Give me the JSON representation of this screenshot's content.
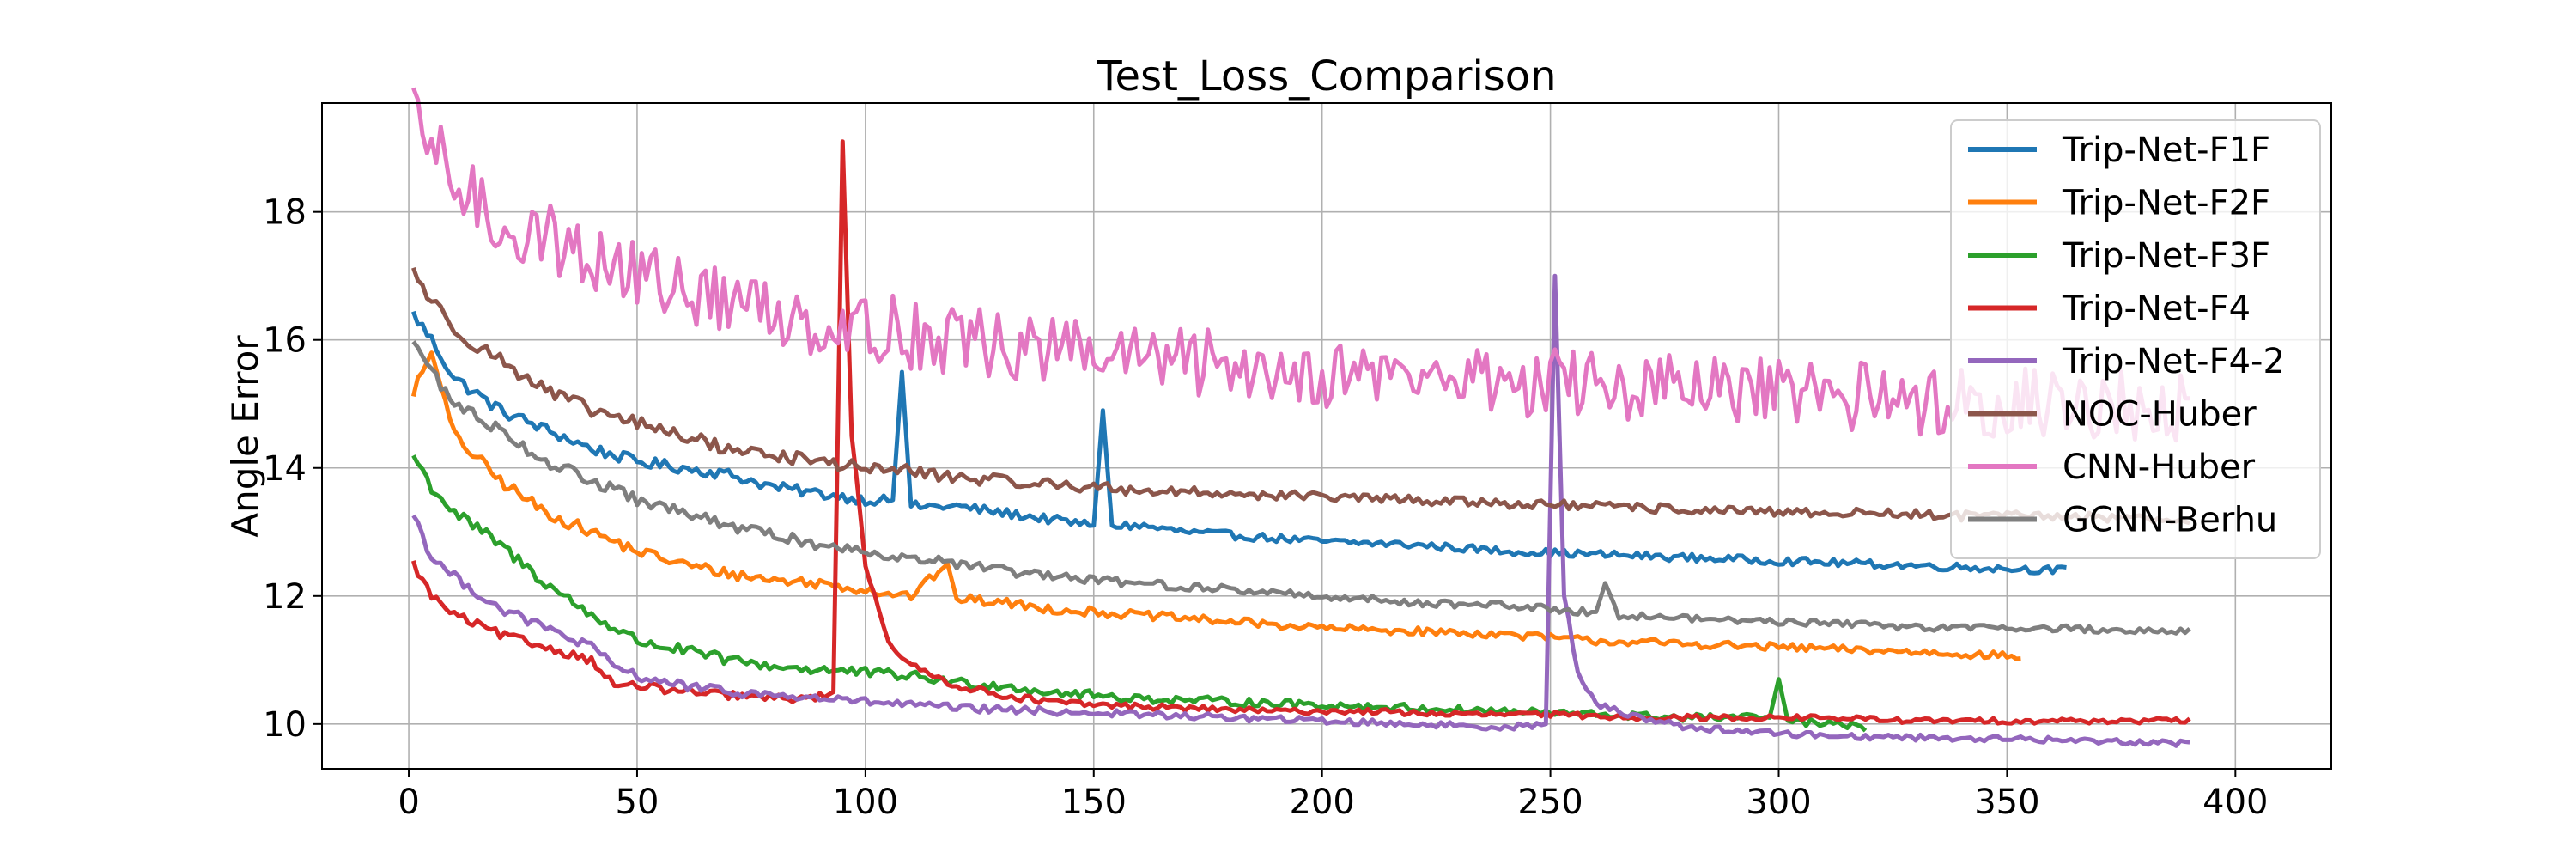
{
  "chart_data": {
    "type": "line",
    "title": "Test_Loss_Comparison",
    "xlabel": "",
    "ylabel": "Angle Error",
    "xlim": [
      -19,
      421
    ],
    "ylim": [
      9.3,
      19.7
    ],
    "xticks": [
      0,
      50,
      100,
      150,
      200,
      250,
      300,
      350,
      400
    ],
    "yticks": [
      10,
      12,
      14,
      16,
      18
    ],
    "grid": true,
    "legend_position": "top-right",
    "series": [
      {
        "name": "Trip-Net-F1F",
        "color": "#1f77b4",
        "end_x": 363,
        "points": [
          [
            1,
            16.4
          ],
          [
            5,
            16.0
          ],
          [
            10,
            15.4
          ],
          [
            20,
            14.9
          ],
          [
            30,
            14.6
          ],
          [
            40,
            14.3
          ],
          [
            50,
            14.1
          ],
          [
            60,
            14.0
          ],
          [
            70,
            13.9
          ],
          [
            80,
            13.7
          ],
          [
            90,
            13.6
          ],
          [
            100,
            13.5
          ],
          [
            106,
            13.5
          ],
          [
            108,
            15.5
          ],
          [
            110,
            13.4
          ],
          [
            120,
            13.4
          ],
          [
            130,
            13.3
          ],
          [
            140,
            13.2
          ],
          [
            150,
            13.1
          ],
          [
            152,
            14.9
          ],
          [
            154,
            13.1
          ],
          [
            160,
            13.1
          ],
          [
            170,
            13.0
          ],
          [
            180,
            12.95
          ],
          [
            190,
            12.9
          ],
          [
            200,
            12.85
          ],
          [
            220,
            12.8
          ],
          [
            240,
            12.7
          ],
          [
            260,
            12.65
          ],
          [
            280,
            12.6
          ],
          [
            300,
            12.55
          ],
          [
            320,
            12.5
          ],
          [
            340,
            12.45
          ],
          [
            363,
            12.4
          ]
        ]
      },
      {
        "name": "Trip-Net-F2F",
        "color": "#ff7f0e",
        "end_x": 353,
        "points": [
          [
            1,
            15.2
          ],
          [
            5,
            15.8
          ],
          [
            10,
            14.5
          ],
          [
            20,
            13.8
          ],
          [
            30,
            13.3
          ],
          [
            40,
            13.0
          ],
          [
            50,
            12.7
          ],
          [
            60,
            12.5
          ],
          [
            70,
            12.35
          ],
          [
            80,
            12.25
          ],
          [
            90,
            12.2
          ],
          [
            100,
            12.1
          ],
          [
            110,
            12.0
          ],
          [
            118,
            12.5
          ],
          [
            120,
            11.95
          ],
          [
            130,
            11.9
          ],
          [
            140,
            11.8
          ],
          [
            150,
            11.75
          ],
          [
            160,
            11.7
          ],
          [
            180,
            11.6
          ],
          [
            200,
            11.5
          ],
          [
            220,
            11.45
          ],
          [
            240,
            11.4
          ],
          [
            260,
            11.3
          ],
          [
            280,
            11.25
          ],
          [
            300,
            11.2
          ],
          [
            320,
            11.15
          ],
          [
            340,
            11.1
          ],
          [
            353,
            11.05
          ]
        ]
      },
      {
        "name": "Trip-Net-F3F",
        "color": "#2ca02c",
        "end_x": 319,
        "points": [
          [
            1,
            14.2
          ],
          [
            5,
            13.7
          ],
          [
            10,
            13.3
          ],
          [
            20,
            12.8
          ],
          [
            30,
            12.2
          ],
          [
            40,
            11.7
          ],
          [
            50,
            11.3
          ],
          [
            60,
            11.15
          ],
          [
            70,
            11.0
          ],
          [
            80,
            10.9
          ],
          [
            90,
            10.85
          ],
          [
            100,
            10.8
          ],
          [
            110,
            10.75
          ],
          [
            120,
            10.65
          ],
          [
            130,
            10.6
          ],
          [
            140,
            10.5
          ],
          [
            150,
            10.45
          ],
          [
            160,
            10.4
          ],
          [
            180,
            10.35
          ],
          [
            200,
            10.3
          ],
          [
            220,
            10.25
          ],
          [
            240,
            10.2
          ],
          [
            260,
            10.15
          ],
          [
            280,
            10.1
          ],
          [
            298,
            10.1
          ],
          [
            300,
            10.7
          ],
          [
            302,
            10.05
          ],
          [
            310,
            10.0
          ],
          [
            319,
            9.95
          ]
        ]
      },
      {
        "name": "Trip-Net-F4",
        "color": "#d62728",
        "end_x": 390,
        "points": [
          [
            1,
            12.5
          ],
          [
            5,
            12.0
          ],
          [
            10,
            11.7
          ],
          [
            20,
            11.4
          ],
          [
            30,
            11.2
          ],
          [
            40,
            11.0
          ],
          [
            45,
            10.6
          ],
          [
            50,
            10.6
          ],
          [
            60,
            10.5
          ],
          [
            70,
            10.45
          ],
          [
            80,
            10.4
          ],
          [
            88,
            10.4
          ],
          [
            93,
            10.5
          ],
          [
            95,
            19.1
          ],
          [
            97,
            14.5
          ],
          [
            100,
            12.5
          ],
          [
            105,
            11.3
          ],
          [
            110,
            10.9
          ],
          [
            120,
            10.6
          ],
          [
            130,
            10.45
          ],
          [
            140,
            10.35
          ],
          [
            150,
            10.3
          ],
          [
            170,
            10.25
          ],
          [
            190,
            10.2
          ],
          [
            210,
            10.2
          ],
          [
            230,
            10.15
          ],
          [
            250,
            10.15
          ],
          [
            270,
            10.1
          ],
          [
            290,
            10.1
          ],
          [
            310,
            10.1
          ],
          [
            330,
            10.05
          ],
          [
            350,
            10.05
          ],
          [
            370,
            10.05
          ],
          [
            390,
            10.05
          ]
        ]
      },
      {
        "name": "Trip-Net-F4-2",
        "color": "#9467bd",
        "end_x": 390,
        "points": [
          [
            1,
            13.3
          ],
          [
            5,
            12.6
          ],
          [
            10,
            12.3
          ],
          [
            20,
            11.8
          ],
          [
            30,
            11.5
          ],
          [
            40,
            11.2
          ],
          [
            45,
            10.9
          ],
          [
            50,
            10.75
          ],
          [
            60,
            10.6
          ],
          [
            70,
            10.5
          ],
          [
            80,
            10.45
          ],
          [
            90,
            10.4
          ],
          [
            100,
            10.35
          ],
          [
            120,
            10.25
          ],
          [
            140,
            10.2
          ],
          [
            160,
            10.15
          ],
          [
            180,
            10.1
          ],
          [
            200,
            10.05
          ],
          [
            220,
            10.0
          ],
          [
            240,
            9.95
          ],
          [
            249,
            10.0
          ],
          [
            251,
            17.0
          ],
          [
            253,
            12.0
          ],
          [
            256,
            10.8
          ],
          [
            260,
            10.3
          ],
          [
            270,
            10.1
          ],
          [
            280,
            9.95
          ],
          [
            300,
            9.85
          ],
          [
            320,
            9.8
          ],
          [
            340,
            9.78
          ],
          [
            360,
            9.75
          ],
          [
            380,
            9.72
          ],
          [
            390,
            9.7
          ]
        ]
      },
      {
        "name": "NOC-Huber",
        "color": "#8c564b",
        "end_x": 390,
        "points": [
          [
            1,
            17.1
          ],
          [
            5,
            16.6
          ],
          [
            10,
            16.2
          ],
          [
            15,
            15.9
          ],
          [
            20,
            15.7
          ],
          [
            30,
            15.2
          ],
          [
            40,
            14.9
          ],
          [
            50,
            14.7
          ],
          [
            60,
            14.5
          ],
          [
            70,
            14.3
          ],
          [
            80,
            14.2
          ],
          [
            90,
            14.1
          ],
          [
            100,
            14.0
          ],
          [
            110,
            13.95
          ],
          [
            120,
            13.85
          ],
          [
            130,
            13.8
          ],
          [
            140,
            13.75
          ],
          [
            150,
            13.7
          ],
          [
            160,
            13.65
          ],
          [
            180,
            13.6
          ],
          [
            200,
            13.55
          ],
          [
            220,
            13.5
          ],
          [
            240,
            13.45
          ],
          [
            260,
            13.4
          ],
          [
            280,
            13.35
          ],
          [
            300,
            13.3
          ],
          [
            320,
            13.3
          ],
          [
            340,
            13.25
          ],
          [
            360,
            13.25
          ],
          [
            390,
            13.2
          ]
        ]
      },
      {
        "name": "CNN-Huber",
        "color": "#e377c2",
        "end_x": 390,
        "points": [
          [
            1,
            19.4
          ],
          [
            5,
            19.0
          ],
          [
            10,
            18.5
          ],
          [
            15,
            18.1
          ],
          [
            20,
            17.8
          ],
          [
            30,
            17.6
          ],
          [
            40,
            17.3
          ],
          [
            50,
            17.0
          ],
          [
            60,
            16.8
          ],
          [
            70,
            16.6
          ],
          [
            80,
            16.45
          ],
          [
            90,
            16.3
          ],
          [
            100,
            16.2
          ],
          [
            110,
            16.1
          ],
          [
            120,
            16.0
          ],
          [
            130,
            15.9
          ],
          [
            140,
            15.85
          ],
          [
            150,
            15.8
          ],
          [
            160,
            15.7
          ],
          [
            180,
            15.6
          ],
          [
            200,
            15.5
          ],
          [
            220,
            15.45
          ],
          [
            240,
            15.35
          ],
          [
            260,
            15.3
          ],
          [
            280,
            15.2
          ],
          [
            300,
            15.15
          ],
          [
            320,
            15.1
          ],
          [
            340,
            15.05
          ],
          [
            360,
            15.0
          ],
          [
            390,
            14.95
          ]
        ]
      },
      {
        "name": "GCNN-Berhu",
        "color": "#7f7f7f",
        "end_x": 390,
        "points": [
          [
            1,
            16.0
          ],
          [
            5,
            15.5
          ],
          [
            10,
            15.0
          ],
          [
            20,
            14.6
          ],
          [
            30,
            14.1
          ],
          [
            40,
            13.8
          ],
          [
            50,
            13.5
          ],
          [
            60,
            13.3
          ],
          [
            70,
            13.1
          ],
          [
            80,
            12.95
          ],
          [
            90,
            12.8
          ],
          [
            100,
            12.7
          ],
          [
            110,
            12.6
          ],
          [
            120,
            12.5
          ],
          [
            130,
            12.4
          ],
          [
            140,
            12.3
          ],
          [
            150,
            12.25
          ],
          [
            160,
            12.2
          ],
          [
            180,
            12.1
          ],
          [
            200,
            12.0
          ],
          [
            220,
            11.9
          ],
          [
            240,
            11.85
          ],
          [
            260,
            11.75
          ],
          [
            262,
            12.2
          ],
          [
            265,
            11.7
          ],
          [
            280,
            11.65
          ],
          [
            300,
            11.6
          ],
          [
            320,
            11.55
          ],
          [
            340,
            11.5
          ],
          [
            360,
            11.5
          ],
          [
            380,
            11.45
          ],
          [
            390,
            11.45
          ]
        ]
      }
    ]
  }
}
